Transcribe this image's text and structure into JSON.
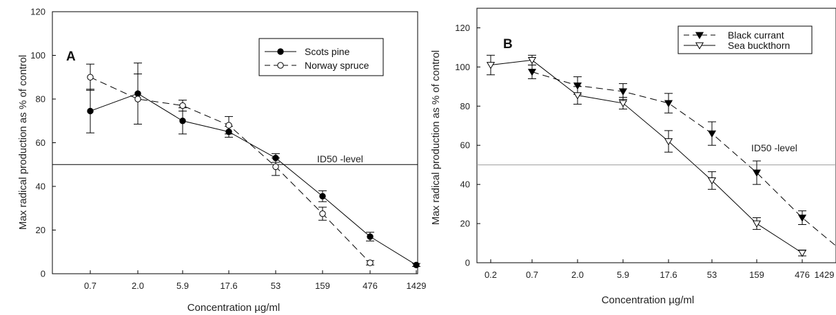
{
  "chart_data": [
    {
      "type": "line",
      "panel_label": "A",
      "xlabel": "Concentration µg/ml",
      "ylabel": "Max radical production as % of control",
      "categories": [
        "0.7",
        "2.0",
        "5.9",
        "17.6",
        "53",
        "159",
        "476",
        "1429"
      ],
      "ylim": [
        0,
        120
      ],
      "yticks": [
        0,
        20,
        40,
        60,
        80,
        100,
        120
      ],
      "grid": false,
      "legend_position": "top-right",
      "reference_line": {
        "y": 50,
        "label": "ID50 -level"
      },
      "series": [
        {
          "name": "Scots pine",
          "marker": "filled-circle",
          "line_style": "solid",
          "x": [
            "0.7",
            "2.0",
            "5.9",
            "17.6",
            "53",
            "159",
            "476",
            "1429"
          ],
          "values": [
            74.5,
            82.5,
            70,
            65,
            53,
            35.5,
            17,
            4
          ],
          "errors": [
            10,
            14,
            6,
            2.5,
            2,
            2.5,
            2,
            0.7
          ]
        },
        {
          "name": "Norway spruce",
          "marker": "open-circle",
          "line_style": "dashed",
          "x": [
            "0.7",
            "2.0",
            "5.9",
            "17.6",
            "53",
            "159",
            "476"
          ],
          "values": [
            90,
            80,
            77,
            68,
            49,
            27.5,
            5
          ],
          "errors": [
            6,
            11.5,
            2.5,
            4,
            4,
            3,
            1
          ]
        }
      ]
    },
    {
      "type": "line",
      "panel_label": "B",
      "xlabel": "Concentration µg/ml",
      "ylabel": "Max radical production as % of control",
      "categories": [
        "0.2",
        "0.7",
        "2.0",
        "5.9",
        "17.6",
        "53",
        "159",
        "476",
        "1429"
      ],
      "ylim": [
        0,
        130
      ],
      "yticks": [
        0,
        20,
        40,
        60,
        80,
        100,
        120
      ],
      "grid": false,
      "legend_position": "top-right",
      "reference_line": {
        "y": 50,
        "label": "ID50 -level"
      },
      "series": [
        {
          "name": "Black currant",
          "marker": "filled-triangle-down",
          "line_style": "dashed",
          "x": [
            "0.7",
            "2.0",
            "5.9",
            "17.6",
            "53",
            "159",
            "476",
            "1429"
          ],
          "values": [
            97.5,
            90.5,
            87.5,
            81.5,
            66,
            46,
            23,
            6.5
          ],
          "errors": [
            3.5,
            4.5,
            4,
            5,
            6,
            6,
            3.5,
            1.5
          ]
        },
        {
          "name": "Sea buckthorn",
          "marker": "open-triangle-down",
          "line_style": "solid",
          "x": [
            "0.2",
            "0.7",
            "2.0",
            "5.9",
            "17.6",
            "53",
            "159",
            "476"
          ],
          "values": [
            101,
            103.5,
            85.5,
            81.5,
            62,
            42,
            20,
            5
          ],
          "errors": [
            5,
            2.5,
            4.5,
            3,
            5.5,
            4.5,
            3,
            1.5
          ]
        }
      ]
    }
  ]
}
